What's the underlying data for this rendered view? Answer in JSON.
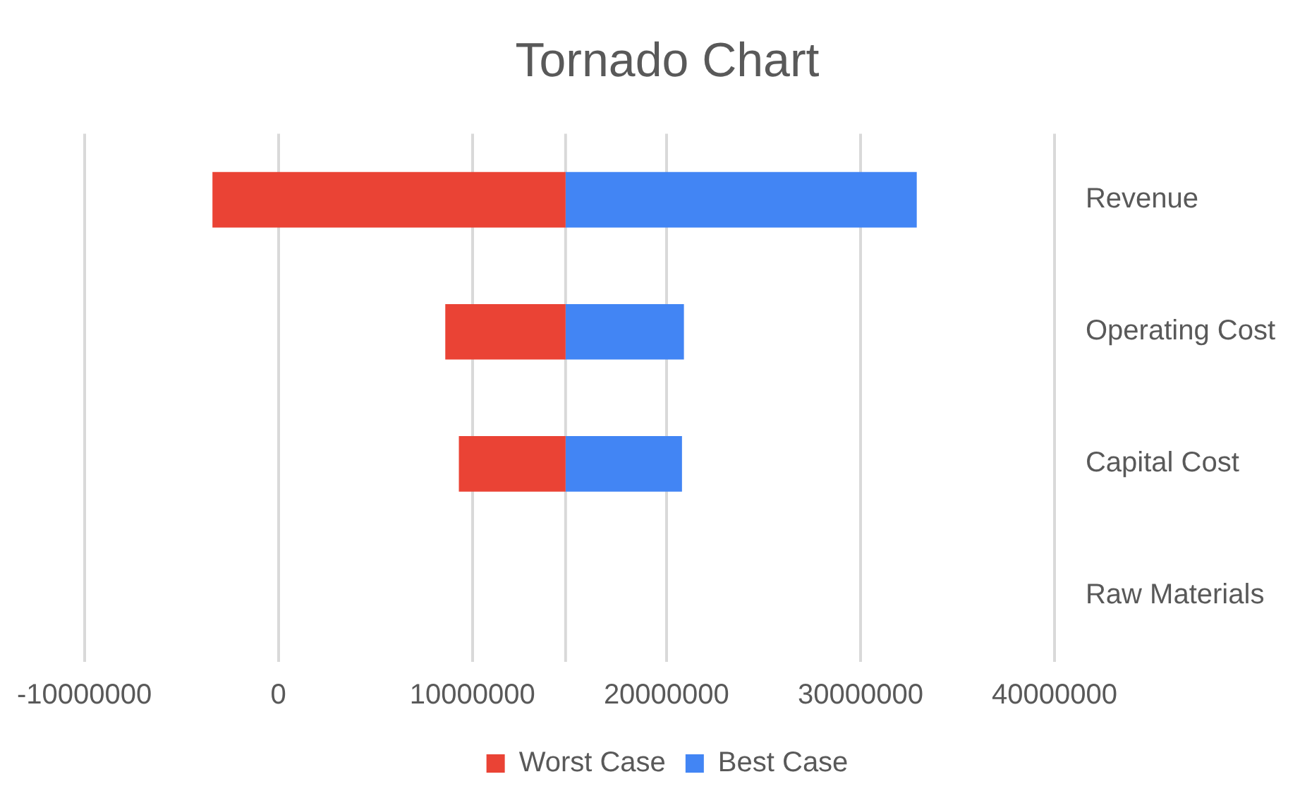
{
  "chart_data": {
    "type": "bar",
    "orientation": "horizontal",
    "title": "Tornado Chart",
    "categories": [
      "Revenue",
      "Operating Cost",
      "Capital Cost",
      "Raw Materials"
    ],
    "series": [
      {
        "name": "Worst Case",
        "color": "#ea4335",
        "base": [
          -3400000,
          8600000,
          9300000,
          null
        ],
        "values": [
          18200000,
          6200000,
          5500000,
          null
        ]
      },
      {
        "name": "Best Case",
        "color": "#4285f4",
        "base": [
          14800000,
          14800000,
          14800000,
          null
        ],
        "values": [
          18100000,
          6100000,
          6000000,
          null
        ]
      }
    ],
    "xlim": [
      -10000000,
      40000000
    ],
    "xticks": [
      -10000000,
      0,
      10000000,
      20000000,
      30000000,
      40000000
    ],
    "ref_lines": [
      {
        "axis": "x",
        "value": 14800000,
        "color": "#d9d9d9"
      }
    ],
    "grid": "x",
    "legend": "bottom"
  }
}
